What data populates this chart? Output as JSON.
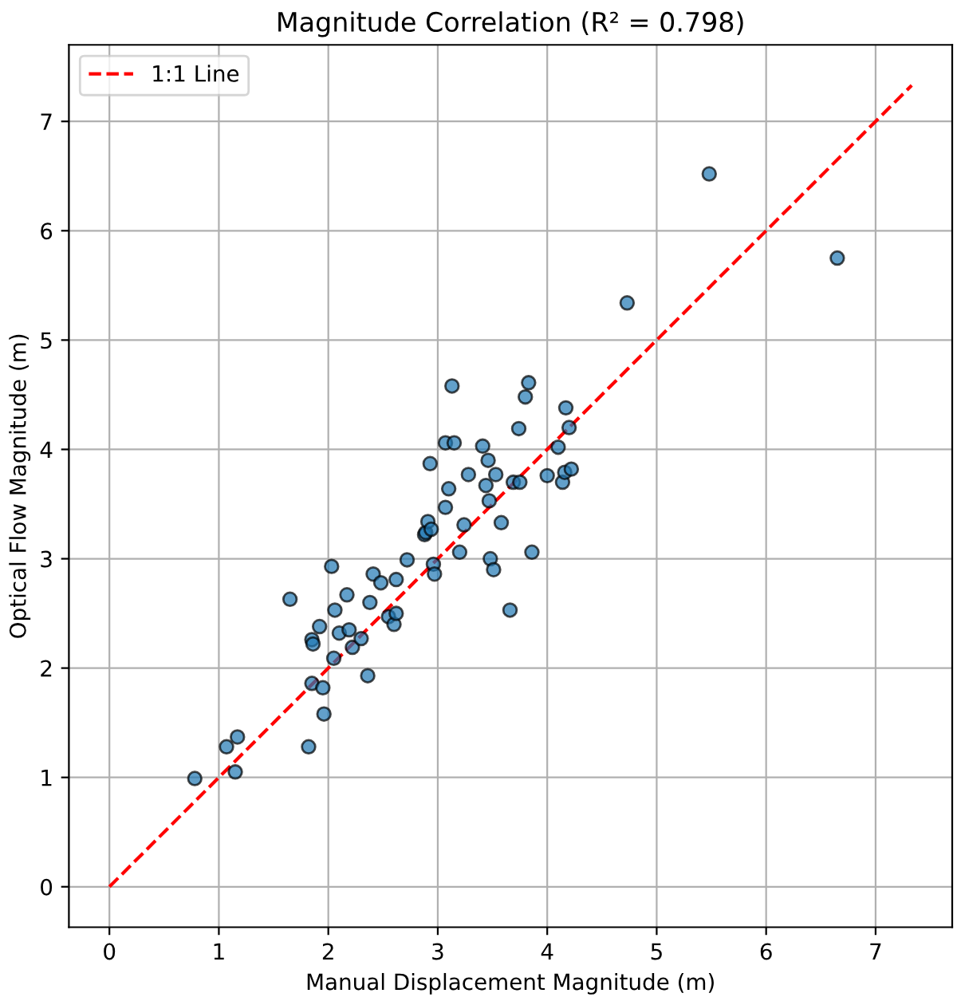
{
  "chart_data": {
    "type": "scatter",
    "title": "Magnitude Correlation (R² = 0.798)",
    "xlabel": "Manual Displacement Magnitude (m)",
    "ylabel": "Optical Flow Magnitude (m)",
    "xlim": [
      -0.37,
      7.7
    ],
    "ylim": [
      -0.37,
      7.7
    ],
    "xticks": [
      0,
      1,
      2,
      3,
      4,
      5,
      6,
      7
    ],
    "yticks": [
      0,
      1,
      2,
      3,
      4,
      5,
      6,
      7
    ],
    "grid": true,
    "legend": "top left",
    "marker": "circle",
    "series": [
      {
        "color": "#1f77b4",
        "x": [
          0.78,
          1.07,
          1.17,
          1.15,
          1.65,
          1.82,
          1.85,
          1.86,
          1.85,
          1.92,
          1.95,
          1.96,
          2.03,
          2.06,
          2.05,
          2.1,
          2.17,
          2.19,
          2.22,
          2.3,
          2.36,
          2.38,
          2.41,
          2.48,
          2.55,
          2.6,
          2.62,
          2.62,
          2.72,
          2.88,
          2.89,
          2.91,
          2.94,
          2.93,
          2.96,
          2.97,
          3.07,
          3.07,
          3.1,
          3.13,
          3.15,
          3.2,
          3.24,
          3.28,
          3.41,
          3.44,
          3.46,
          3.47,
          3.48,
          3.51,
          3.53,
          3.58,
          3.66,
          3.69,
          3.75,
          3.74,
          3.8,
          3.83,
          3.86,
          4.0,
          4.1,
          4.14,
          4.16,
          4.17,
          4.2,
          4.22,
          4.73,
          5.48,
          6.65
        ],
        "values": [
          0.99,
          1.28,
          1.37,
          1.05,
          2.63,
          1.28,
          2.26,
          2.22,
          1.86,
          2.38,
          1.82,
          1.58,
          2.93,
          2.53,
          2.09,
          2.32,
          2.67,
          2.35,
          2.19,
          2.27,
          1.93,
          2.6,
          2.86,
          2.78,
          2.47,
          2.4,
          2.81,
          2.5,
          2.99,
          3.22,
          3.24,
          3.34,
          3.27,
          3.87,
          2.95,
          2.86,
          4.06,
          3.47,
          3.64,
          4.58,
          4.06,
          3.06,
          3.31,
          3.77,
          4.03,
          3.67,
          3.9,
          3.53,
          3.0,
          2.9,
          3.77,
          3.33,
          2.53,
          3.7,
          3.7,
          4.19,
          4.48,
          4.61,
          3.06,
          3.76,
          4.02,
          3.7,
          3.79,
          4.38,
          4.2,
          3.82,
          5.34,
          6.52,
          5.75
        ]
      },
      {
        "type": "line",
        "name": "1:1 Line",
        "color": "#ff0000",
        "line_style": "dashed",
        "marker": "none",
        "x": [
          0,
          7.33
        ],
        "values": [
          0,
          7.33
        ]
      }
    ]
  }
}
